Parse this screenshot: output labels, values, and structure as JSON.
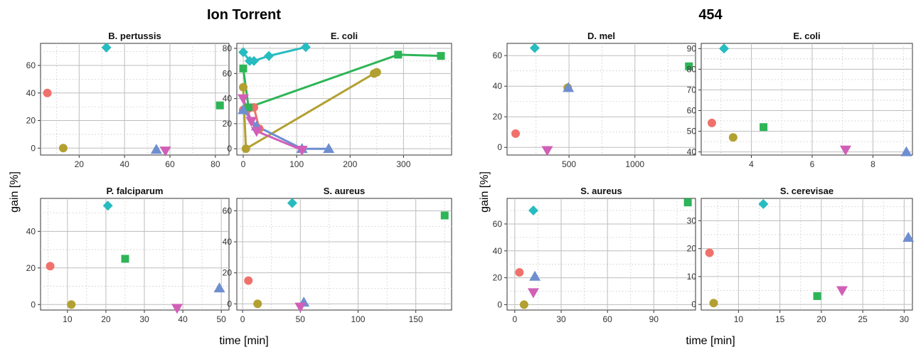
{
  "figure": {
    "sections": [
      {
        "title": "Ion Torrent",
        "ylabel": "gain [%]",
        "xlabel": "time [min]"
      },
      {
        "title": "454",
        "ylabel": "gain [%]",
        "xlabel": "time [min]"
      }
    ]
  },
  "colors": {
    "circle": "#f0716b",
    "olive": "#b3a032",
    "green": "#2db557",
    "cyan": "#27bcc0",
    "blue": "#6e8ed0",
    "magenta": "#d15fb7"
  },
  "chart_data": [
    {
      "type": "scatter",
      "title": "B. pertussis",
      "xlim": [
        3,
        86
      ],
      "ylim": [
        -5,
        76
      ],
      "xticks": [
        20,
        40,
        60,
        80
      ],
      "yticks": [
        0,
        20,
        40,
        60
      ],
      "series": [
        {
          "color": "circle",
          "marker": "circle",
          "points": [
            [
              6,
              40
            ]
          ]
        },
        {
          "color": "olive",
          "marker": "circle",
          "points": [
            [
              13,
              0
            ]
          ]
        },
        {
          "color": "green",
          "marker": "square",
          "points": [
            [
              82,
              31
            ]
          ]
        },
        {
          "color": "cyan",
          "marker": "diamond",
          "points": [
            [
              32,
              73
            ]
          ]
        },
        {
          "color": "blue",
          "marker": "triangle-up",
          "points": [
            [
              54,
              -1
            ]
          ]
        },
        {
          "color": "magenta",
          "marker": "triangle-down",
          "points": [
            [
              58,
              -2
            ]
          ]
        }
      ]
    },
    {
      "type": "line",
      "title": "E. coli",
      "xlim": [
        -12,
        390
      ],
      "ylim": [
        -5,
        84
      ],
      "xticks": [
        0,
        100,
        200,
        300
      ],
      "yticks": [
        0,
        20,
        40,
        60,
        80
      ],
      "series": [
        {
          "color": "circle",
          "marker": "circle",
          "points": [
            [
              0,
              31
            ],
            [
              10,
              32
            ],
            [
              20,
              33
            ],
            [
              30,
              16
            ]
          ]
        },
        {
          "color": "olive",
          "marker": "circle",
          "points": [
            [
              0,
              49
            ],
            [
              5,
              0
            ],
            [
              245,
              60
            ],
            [
              250,
              61
            ]
          ]
        },
        {
          "color": "green",
          "marker": "square",
          "points": [
            [
              0,
              64
            ],
            [
              10,
              33
            ],
            [
              290,
              75
            ],
            [
              370,
              74
            ]
          ]
        },
        {
          "color": "cyan",
          "marker": "diamond",
          "points": [
            [
              0,
              77
            ],
            [
              12,
              70
            ],
            [
              20,
              70
            ],
            [
              48,
              74
            ],
            [
              117,
              81
            ]
          ]
        },
        {
          "color": "blue",
          "marker": "triangle-up",
          "points": [
            [
              0,
              31
            ],
            [
              25,
              18
            ],
            [
              110,
              0
            ],
            [
              160,
              0
            ]
          ]
        },
        {
          "color": "magenta",
          "marker": "triangle-down",
          "points": [
            [
              0,
              40
            ],
            [
              15,
              22
            ],
            [
              25,
              14
            ],
            [
              110,
              -1
            ]
          ]
        }
      ]
    },
    {
      "type": "scatter",
      "title": "P. falciparum",
      "xlim": [
        3,
        52
      ],
      "ylim": [
        -3,
        58
      ],
      "xticks": [
        10,
        20,
        30,
        40,
        50
      ],
      "yticks": [
        0,
        20,
        40
      ],
      "series": [
        {
          "color": "circle",
          "marker": "circle",
          "points": [
            [
              5.5,
              21
            ]
          ]
        },
        {
          "color": "olive",
          "marker": "circle",
          "points": [
            [
              11,
              0
            ]
          ]
        },
        {
          "color": "green",
          "marker": "square",
          "points": [
            [
              25,
              25
            ]
          ]
        },
        {
          "color": "cyan",
          "marker": "diamond",
          "points": [
            [
              20.5,
              54
            ]
          ]
        },
        {
          "color": "blue",
          "marker": "triangle-up",
          "points": [
            [
              49.5,
              9
            ]
          ]
        },
        {
          "color": "magenta",
          "marker": "triangle-down",
          "points": [
            [
              38.5,
              -2
            ]
          ]
        }
      ]
    },
    {
      "type": "scatter",
      "title": "S. aureus",
      "xlim": [
        -5,
        181
      ],
      "ylim": [
        -4,
        68
      ],
      "xticks": [
        0,
        50,
        100,
        150
      ],
      "yticks": [
        0,
        20,
        40,
        60
      ],
      "series": [
        {
          "color": "circle",
          "marker": "circle",
          "points": [
            [
              5,
              15
            ]
          ]
        },
        {
          "color": "olive",
          "marker": "circle",
          "points": [
            [
              13,
              0
            ]
          ]
        },
        {
          "color": "green",
          "marker": "square",
          "points": [
            [
              175,
              57
            ]
          ]
        },
        {
          "color": "cyan",
          "marker": "diamond",
          "points": [
            [
              43,
              65
            ]
          ]
        },
        {
          "color": "blue",
          "marker": "triangle-up",
          "points": [
            [
              53,
              1
            ]
          ]
        },
        {
          "color": "magenta",
          "marker": "triangle-down",
          "points": [
            [
              50,
              -2
            ]
          ]
        }
      ]
    },
    {
      "type": "scatter",
      "title": "D. mel",
      "xlim": [
        30,
        1460
      ],
      "ylim": [
        -5,
        68
      ],
      "xticks": [
        500,
        1000
      ],
      "yticks": [
        0,
        20,
        40,
        60
      ],
      "series": [
        {
          "color": "circle",
          "marker": "circle",
          "points": [
            [
              95,
              9
            ]
          ]
        },
        {
          "color": "olive",
          "marker": "circle",
          "points": [
            [
              490,
              39
            ]
          ]
        },
        {
          "color": "green",
          "marker": "square",
          "points": [
            [
              1410,
              53
            ]
          ]
        },
        {
          "color": "cyan",
          "marker": "diamond",
          "points": [
            [
              240,
              65
            ]
          ]
        },
        {
          "color": "blue",
          "marker": "triangle-up",
          "points": [
            [
              495,
              39
            ]
          ]
        },
        {
          "color": "magenta",
          "marker": "triangle-down",
          "points": [
            [
              335,
              -2
            ]
          ]
        }
      ]
    },
    {
      "type": "scatter",
      "title": "E. coli",
      "xlim": [
        2.35,
        9.3
      ],
      "ylim": [
        38.5,
        92.5
      ],
      "xticks": [
        4,
        6,
        8
      ],
      "yticks": [
        40,
        50,
        60,
        70,
        80,
        90
      ],
      "series": [
        {
          "color": "circle",
          "marker": "circle",
          "points": [
            [
              2.7,
              54
            ]
          ]
        },
        {
          "color": "olive",
          "marker": "circle",
          "points": [
            [
              3.4,
              47
            ]
          ]
        },
        {
          "color": "green",
          "marker": "square",
          "points": [
            [
              4.4,
              52
            ]
          ]
        },
        {
          "color": "cyan",
          "marker": "diamond",
          "points": [
            [
              3.1,
              90
            ]
          ]
        },
        {
          "color": "blue",
          "marker": "triangle-up",
          "points": [
            [
              9.1,
              40
            ]
          ]
        },
        {
          "color": "magenta",
          "marker": "triangle-down",
          "points": [
            [
              7.1,
              41
            ]
          ]
        }
      ]
    },
    {
      "type": "scatter",
      "title": "S. aureus",
      "xlim": [
        -5,
        117
      ],
      "ylim": [
        -4,
        79
      ],
      "xticks": [
        0,
        30,
        60,
        90
      ],
      "yticks": [
        0,
        20,
        40,
        60
      ],
      "series": [
        {
          "color": "circle",
          "marker": "circle",
          "points": [
            [
              3,
              24
            ]
          ]
        },
        {
          "color": "olive",
          "marker": "circle",
          "points": [
            [
              6,
              0
            ]
          ]
        },
        {
          "color": "green",
          "marker": "square",
          "points": [
            [
              112,
              76
            ]
          ]
        },
        {
          "color": "cyan",
          "marker": "diamond",
          "points": [
            [
              12,
              70
            ]
          ]
        },
        {
          "color": "blue",
          "marker": "triangle-up",
          "points": [
            [
              13,
              21
            ]
          ]
        },
        {
          "color": "magenta",
          "marker": "triangle-down",
          "points": [
            [
              12,
              9
            ]
          ]
        }
      ]
    },
    {
      "type": "scatter",
      "title": "S. cerevisae",
      "xlim": [
        5.5,
        31
      ],
      "ylim": [
        -2,
        38
      ],
      "xticks": [
        10,
        15,
        20,
        25,
        30
      ],
      "yticks": [
        0,
        10,
        20,
        30
      ],
      "series": [
        {
          "color": "circle",
          "marker": "circle",
          "points": [
            [
              6.5,
              18.5
            ]
          ]
        },
        {
          "color": "olive",
          "marker": "circle",
          "points": [
            [
              7,
              0.5
            ]
          ]
        },
        {
          "color": "green",
          "marker": "square",
          "points": [
            [
              19.5,
              3
            ]
          ]
        },
        {
          "color": "cyan",
          "marker": "diamond",
          "points": [
            [
              13,
              36
            ]
          ]
        },
        {
          "color": "blue",
          "marker": "triangle-up",
          "points": [
            [
              30.5,
              24
            ]
          ]
        },
        {
          "color": "magenta",
          "marker": "triangle-down",
          "points": [
            [
              22.5,
              5
            ]
          ]
        }
      ]
    }
  ]
}
